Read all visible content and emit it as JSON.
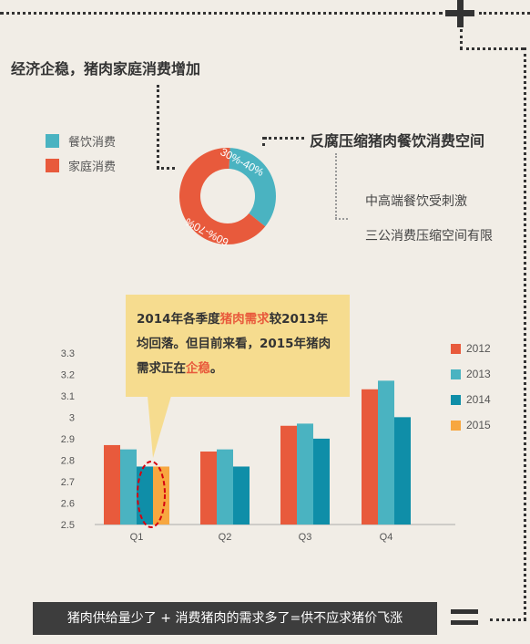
{
  "headline_left": "经济企稳，猪肉家庭消费增加",
  "headline_right": "反腐压缩猪肉餐饮消费空间",
  "donut": {
    "legend": [
      {
        "label": "餐饮消费",
        "color": "#4ab3c1"
      },
      {
        "label": "家庭消费",
        "color": "#e85a3c"
      }
    ],
    "segments": [
      {
        "label": "30%-40%",
        "value": 35,
        "color": "#4ab3c1"
      },
      {
        "label": "60%-70%",
        "value": 65,
        "color": "#e85a3c"
      }
    ]
  },
  "points": [
    "中高端餐饮受刺激",
    "三公消费压缩空间有限"
  ],
  "callout": {
    "p1": "2014年各季度",
    "p1_hl": "猪肉需求",
    "p2": "较2013年均回落。但目前来看，2015年猪肉需求正在",
    "p2_hl": "企稳",
    "p3": "。"
  },
  "footer": "猪肉供给量少了 + 消费猪肉的需求多了=供不应求猪价飞涨",
  "chart_data": {
    "type": "bar",
    "categories": [
      "Q1",
      "Q2",
      "Q3",
      "Q4"
    ],
    "series": [
      {
        "name": "2012",
        "color": "#e85a3c",
        "values": [
          2.87,
          2.84,
          2.96,
          3.13
        ]
      },
      {
        "name": "2013",
        "color": "#4ab3c1",
        "values": [
          2.85,
          2.85,
          2.97,
          3.17
        ]
      },
      {
        "name": "2014",
        "color": "#0f8ea8",
        "values": [
          2.77,
          2.77,
          2.9,
          3.0
        ]
      },
      {
        "name": "2015",
        "color": "#f7a740",
        "values": [
          2.77,
          null,
          null,
          null
        ]
      }
    ],
    "yticks": [
      2.5,
      2.6,
      2.7,
      2.8,
      2.9,
      3,
      3.1,
      3.2,
      3.3
    ],
    "ylim": [
      2.5,
      3.35
    ],
    "title": "",
    "xlabel": "",
    "ylabel": "",
    "legend_position": "right",
    "grid": false
  }
}
